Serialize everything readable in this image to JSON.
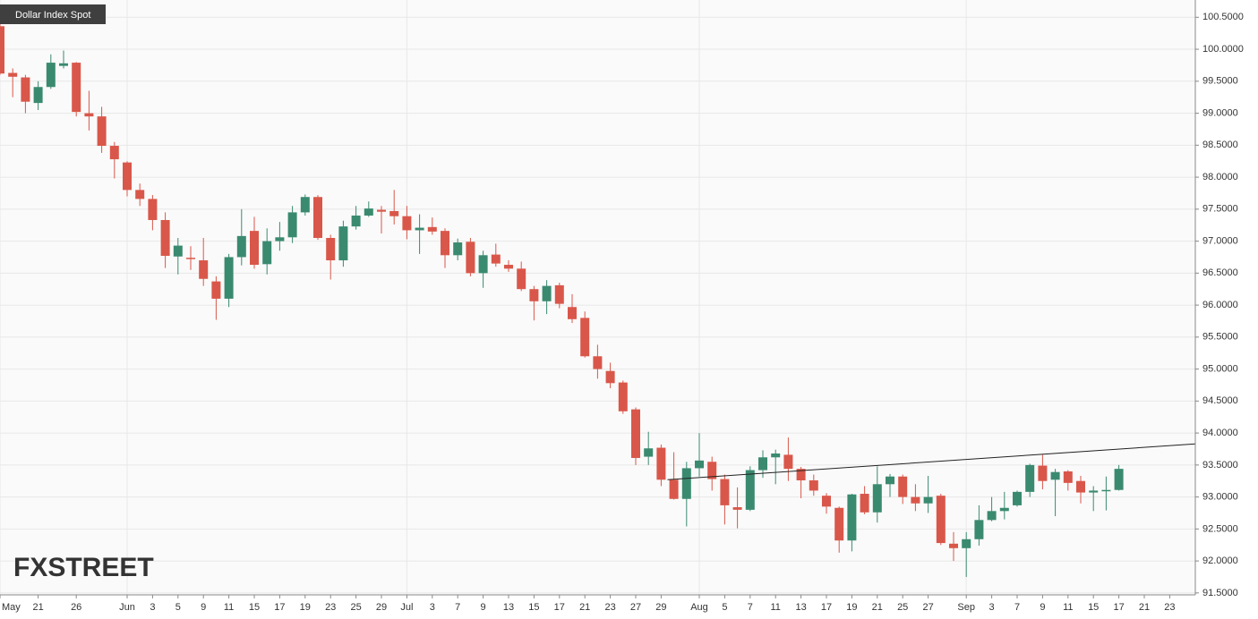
{
  "chart_data": {
    "type": "candlestick",
    "title": "Dollar Index Spot",
    "watermark": [
      "FX",
      "STREET"
    ],
    "categories": [
      "May",
      null,
      null,
      "21",
      null,
      null,
      "26",
      null,
      null,
      null,
      "Jun",
      null,
      "3",
      null,
      "5",
      null,
      "9",
      null,
      "11",
      null,
      "15",
      null,
      "17",
      null,
      "19",
      null,
      "23",
      null,
      "25",
      null,
      "29",
      null,
      "Jul",
      null,
      "3",
      null,
      "7",
      null,
      "9",
      null,
      "13",
      null,
      "15",
      null,
      "17",
      null,
      "21",
      null,
      "23",
      null,
      "27",
      null,
      "29",
      null,
      null,
      "Aug",
      null,
      "5",
      null,
      "7",
      null,
      "11",
      null,
      "13",
      null,
      "17",
      null,
      "19",
      null,
      "21",
      null,
      "25",
      null,
      "27",
      null,
      null,
      "Sep",
      null,
      "3",
      null,
      "7",
      null,
      "9",
      null,
      "11",
      null,
      "15",
      null,
      "17",
      null,
      "21",
      null,
      "23",
      null
    ],
    "open": [
      100.36,
      99.63,
      99.56,
      99.16,
      99.41,
      99.74,
      99.79,
      99.0,
      98.95,
      98.49,
      98.23,
      97.8,
      97.66,
      97.33,
      96.76,
      96.74,
      96.7,
      96.37,
      96.1,
      96.75,
      97.16,
      96.64,
      97.0,
      97.06,
      97.45,
      97.69,
      97.05,
      96.7,
      97.23,
      97.4,
      97.49,
      97.47,
      97.39,
      97.17,
      97.22,
      97.16,
      96.78,
      96.99,
      96.5,
      96.79,
      96.63,
      96.57,
      96.25,
      96.06,
      96.31,
      95.97,
      95.8,
      95.2,
      94.97,
      94.79,
      94.37,
      93.63,
      93.77,
      93.27,
      92.97,
      93.45,
      93.55,
      93.28,
      92.84,
      92.8,
      93.42,
      93.62,
      93.66,
      93.44,
      93.26,
      93.02,
      92.83,
      92.32,
      93.05,
      92.76,
      93.2,
      93.32,
      93.0,
      92.9,
      93.02,
      92.27,
      92.2,
      92.34,
      92.64,
      92.78,
      92.87,
      93.08,
      93.49,
      93.27,
      93.4,
      93.25,
      93.07,
      93.09,
      93.11,
      null,
      null,
      null,
      null,
      null
    ],
    "high": [
      100.5,
      99.7,
      99.6,
      99.5,
      99.92,
      99.98,
      99.8,
      99.35,
      99.1,
      98.55,
      98.25,
      97.9,
      97.72,
      97.45,
      97.05,
      96.92,
      97.05,
      96.45,
      96.8,
      97.5,
      97.38,
      97.2,
      97.3,
      97.55,
      97.73,
      97.72,
      97.1,
      97.32,
      97.55,
      97.62,
      97.55,
      97.8,
      97.55,
      97.42,
      97.37,
      97.2,
      97.04,
      97.05,
      96.85,
      96.96,
      96.7,
      96.68,
      96.3,
      96.39,
      96.35,
      96.17,
      95.9,
      95.38,
      95.1,
      94.82,
      94.4,
      94.02,
      93.82,
      93.7,
      93.55,
      94.0,
      93.63,
      93.35,
      93.15,
      93.48,
      93.73,
      93.74,
      93.93,
      93.47,
      93.35,
      93.06,
      92.85,
      93.05,
      93.17,
      93.48,
      93.36,
      93.35,
      93.2,
      93.33,
      93.05,
      92.45,
      92.45,
      92.87,
      93.0,
      93.08,
      93.1,
      93.52,
      93.66,
      93.44,
      93.42,
      93.33,
      93.17,
      93.32,
      93.5,
      null,
      null,
      null,
      null,
      null
    ],
    "low": [
      99.6,
      99.25,
      99.0,
      99.05,
      99.38,
      99.7,
      98.95,
      98.73,
      98.38,
      97.98,
      97.7,
      97.55,
      97.17,
      96.58,
      96.48,
      96.55,
      96.3,
      95.77,
      95.97,
      96.62,
      96.57,
      96.48,
      96.85,
      96.97,
      97.4,
      97.02,
      96.4,
      96.6,
      97.18,
      97.38,
      97.12,
      97.26,
      97.03,
      96.8,
      97.1,
      96.58,
      96.7,
      96.45,
      96.27,
      96.6,
      96.52,
      96.22,
      95.76,
      95.86,
      95.95,
      95.72,
      95.18,
      94.85,
      94.7,
      94.3,
      93.5,
      93.5,
      93.17,
      92.96,
      92.54,
      93.32,
      93.1,
      92.57,
      92.51,
      92.78,
      93.3,
      93.2,
      93.25,
      92.98,
      93.02,
      92.74,
      92.13,
      92.15,
      92.73,
      92.6,
      93.0,
      92.89,
      92.78,
      92.75,
      92.25,
      92.0,
      91.75,
      92.24,
      92.62,
      92.65,
      92.85,
      93.0,
      93.12,
      92.7,
      93.1,
      92.9,
      92.78,
      92.79,
      93.1,
      null,
      null,
      null,
      null,
      null
    ],
    "close": [
      99.62,
      99.57,
      99.18,
      99.41,
      99.79,
      99.78,
      99.02,
      98.95,
      98.49,
      98.28,
      97.8,
      97.66,
      97.33,
      96.77,
      96.93,
      96.72,
      96.41,
      96.1,
      96.75,
      97.08,
      96.63,
      97.0,
      97.06,
      97.45,
      97.69,
      97.05,
      96.7,
      97.23,
      97.4,
      97.51,
      97.46,
      97.39,
      97.17,
      97.21,
      97.15,
      96.78,
      96.98,
      96.5,
      96.78,
      96.65,
      96.57,
      96.25,
      96.06,
      96.3,
      96.02,
      95.78,
      95.2,
      95.0,
      94.78,
      94.34,
      93.61,
      93.76,
      93.27,
      92.97,
      93.45,
      93.57,
      93.28,
      92.87,
      92.8,
      93.42,
      93.62,
      93.68,
      93.44,
      93.26,
      93.1,
      92.85,
      92.32,
      93.04,
      92.76,
      93.2,
      93.32,
      93.0,
      92.9,
      93.0,
      92.28,
      92.2,
      92.34,
      92.64,
      92.78,
      92.83,
      93.08,
      93.5,
      93.25,
      93.39,
      93.22,
      93.07,
      93.1,
      93.11,
      93.44,
      null,
      null,
      null,
      null,
      null
    ],
    "up_color": "#3a8a70",
    "down_color": "#d9574a",
    "trendline": {
      "x": [
        52.5,
        94
      ],
      "y": [
        93.27,
        93.83
      ],
      "color": "#222222"
    },
    "ylim": [
      91.47,
      100.77
    ],
    "yticks": [
      {
        "value": 91.5,
        "label": "91.5000"
      },
      {
        "value": 92,
        "label": "92.0000"
      },
      {
        "value": 92.5,
        "label": "92.5000"
      },
      {
        "value": 93,
        "label": "93.0000"
      },
      {
        "value": 93.5,
        "label": "93.5000"
      },
      {
        "value": 94,
        "label": "94.0000"
      },
      {
        "value": 94.5,
        "label": "94.5000"
      },
      {
        "value": 95,
        "label": "95.0000"
      },
      {
        "value": 95.5,
        "label": "95.5000"
      },
      {
        "value": 96,
        "label": "96.0000"
      },
      {
        "value": 96.5,
        "label": "96.5000"
      },
      {
        "value": 97,
        "label": "97.0000"
      },
      {
        "value": 97.5,
        "label": "97.5000"
      },
      {
        "value": 98,
        "label": "98.0000"
      },
      {
        "value": 98.5,
        "label": "98.5000"
      },
      {
        "value": 99,
        "label": "99.0000"
      },
      {
        "value": 99.5,
        "label": "99.5000"
      },
      {
        "value": 100,
        "label": "100.0000"
      },
      {
        "value": 100.5,
        "label": "100.5000"
      }
    ],
    "grid": true
  }
}
